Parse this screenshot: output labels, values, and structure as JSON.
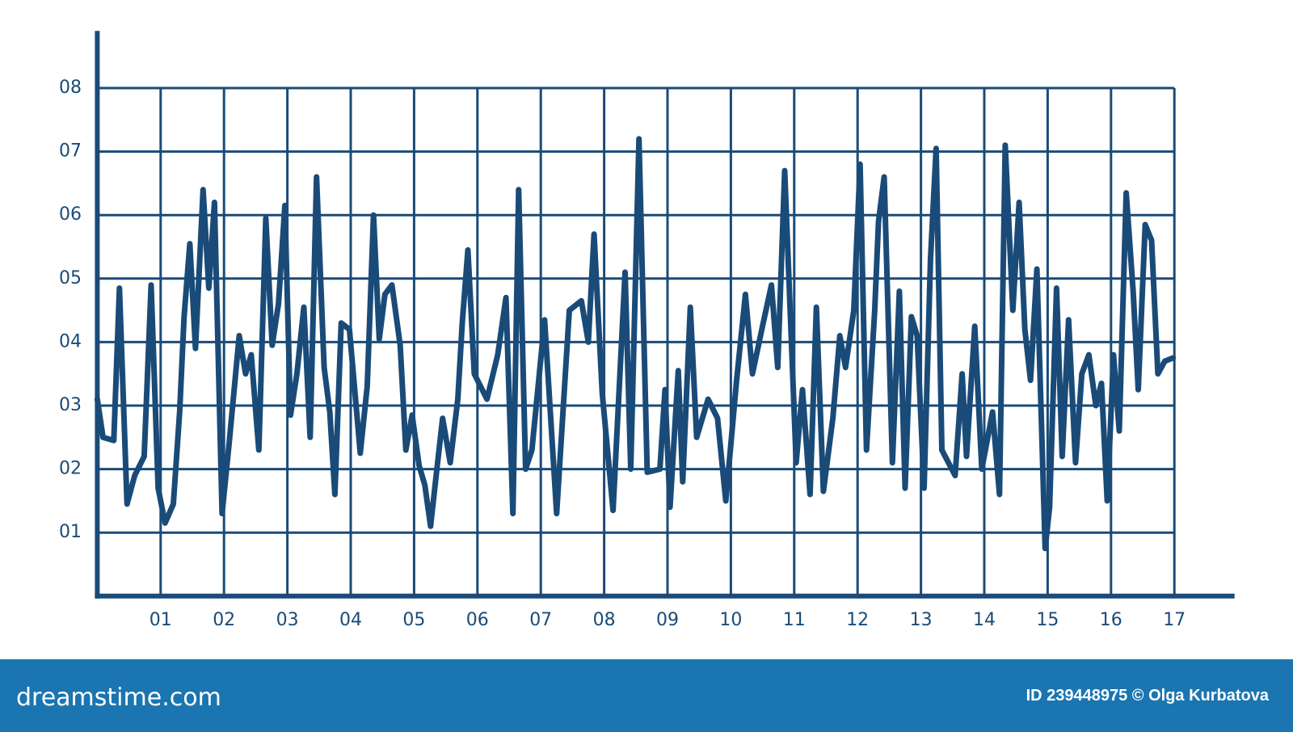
{
  "chart_data": {
    "type": "line",
    "x": [
      0,
      0.09,
      0.26,
      0.35,
      0.47,
      0.59,
      0.74,
      0.85,
      0.96,
      1.07,
      1.2,
      1.3,
      1.37,
      1.46,
      1.55,
      1.67,
      1.76,
      1.85,
      1.97,
      2.08,
      2.24,
      2.34,
      2.43,
      2.55,
      2.66,
      2.76,
      2.86,
      2.96,
      3.05,
      3.15,
      3.26,
      3.36,
      3.46,
      3.58,
      3.67,
      3.75,
      3.85,
      3.98,
      4.15,
      4.26,
      4.36,
      4.45,
      4.54,
      4.65,
      4.78,
      4.87,
      4.97,
      5.08,
      5.17,
      5.26,
      5.36,
      5.45,
      5.57,
      5.69,
      5.76,
      5.85,
      5.95,
      6.15,
      6.32,
      6.45,
      6.56,
      6.65,
      6.76,
      6.86,
      7.06,
      7.25,
      7.45,
      7.64,
      7.75,
      7.84,
      7.97,
      8.14,
      8.33,
      8.42,
      8.55,
      8.68,
      8.88,
      8.96,
      9.04,
      9.17,
      9.24,
      9.36,
      9.46,
      9.64,
      9.79,
      9.92,
      10.09,
      10.23,
      10.34,
      10.51,
      10.64,
      10.74,
      10.85,
      11.03,
      11.13,
      11.25,
      11.35,
      11.46,
      11.61,
      11.72,
      11.81,
      11.94,
      12.04,
      12.14,
      12.27,
      12.33,
      12.42,
      12.55,
      12.66,
      12.75,
      12.85,
      12.94,
      13.05,
      13.15,
      13.24,
      13.33,
      13.54,
      13.65,
      13.72,
      13.85,
      13.96,
      14.13,
      14.24,
      14.33,
      14.45,
      14.55,
      14.64,
      14.73,
      14.83,
      14.96,
      15.03,
      15.14,
      15.23,
      15.33,
      15.44,
      15.54,
      15.65,
      15.76,
      15.85,
      15.94,
      16.04,
      16.13,
      16.24,
      16.35,
      16.43,
      16.54,
      16.64,
      16.74,
      16.85,
      16.98
    ],
    "series": [
      {
        "color": "#1a4b78",
        "values": [
          3.1,
          2.5,
          2.45,
          4.85,
          1.45,
          1.9,
          2.2,
          4.9,
          1.7,
          1.15,
          1.45,
          2.9,
          4.4,
          5.55,
          3.9,
          6.4,
          4.85,
          6.2,
          1.3,
          2.4,
          4.1,
          3.5,
          3.8,
          2.3,
          5.95,
          3.95,
          4.6,
          6.15,
          2.85,
          3.5,
          4.55,
          2.5,
          6.6,
          3.6,
          2.9,
          1.6,
          4.3,
          4.2,
          2.25,
          3.3,
          6.0,
          4.05,
          4.75,
          4.9,
          3.95,
          2.3,
          2.85,
          2.05,
          1.75,
          1.1,
          2.0,
          2.8,
          2.1,
          3.1,
          4.3,
          5.45,
          3.5,
          3.1,
          3.8,
          4.7,
          1.3,
          6.4,
          2.0,
          2.3,
          4.35,
          1.3,
          4.5,
          4.65,
          4.0,
          5.7,
          3.2,
          1.35,
          5.1,
          2.0,
          7.2,
          1.95,
          2.0,
          3.25,
          1.4,
          3.55,
          1.8,
          4.55,
          2.5,
          3.1,
          2.8,
          1.5,
          3.4,
          4.75,
          3.5,
          4.3,
          4.9,
          3.6,
          6.7,
          2.1,
          3.25,
          1.6,
          4.55,
          1.65,
          2.8,
          4.1,
          3.6,
          4.5,
          6.8,
          2.3,
          4.5,
          5.9,
          6.6,
          2.1,
          4.8,
          1.7,
          4.4,
          4.1,
          1.7,
          5.3,
          7.05,
          2.3,
          1.9,
          3.5,
          2.2,
          4.25,
          2.0,
          2.9,
          1.6,
          7.1,
          4.5,
          6.2,
          4.2,
          3.4,
          5.15,
          0.75,
          1.4,
          4.85,
          2.2,
          4.35,
          2.1,
          3.5,
          3.8,
          3.0,
          3.35,
          1.5,
          3.8,
          2.6,
          6.35,
          4.8,
          3.25,
          5.85,
          5.6,
          3.5,
          3.7,
          3.75
        ]
      }
    ],
    "xlim": [
      0,
      17.95
    ],
    "ylim": [
      0,
      8.9
    ],
    "xticks": [
      {
        "value": 1,
        "label": "01"
      },
      {
        "value": 2,
        "label": "02"
      },
      {
        "value": 3,
        "label": "03"
      },
      {
        "value": 4,
        "label": "04"
      },
      {
        "value": 5,
        "label": "05"
      },
      {
        "value": 6,
        "label": "06"
      },
      {
        "value": 7,
        "label": "07"
      },
      {
        "value": 8,
        "label": "08"
      },
      {
        "value": 9,
        "label": "09"
      },
      10,
      11,
      12,
      13,
      14,
      15,
      16,
      17
    ],
    "yticks": [
      {
        "value": 1,
        "label": "01"
      },
      {
        "value": 2,
        "label": "02"
      },
      {
        "value": 3,
        "label": "03"
      },
      {
        "value": 4,
        "label": "04"
      },
      {
        "value": 5,
        "label": "05"
      },
      {
        "value": 6,
        "label": "06"
      },
      {
        "value": 7,
        "label": "07"
      },
      {
        "value": 8,
        "label": "08"
      }
    ],
    "grid": true
  },
  "footer": {
    "brand": "dreamstime.com",
    "credit": "ID 239448975 © Olga Kurbatova"
  }
}
